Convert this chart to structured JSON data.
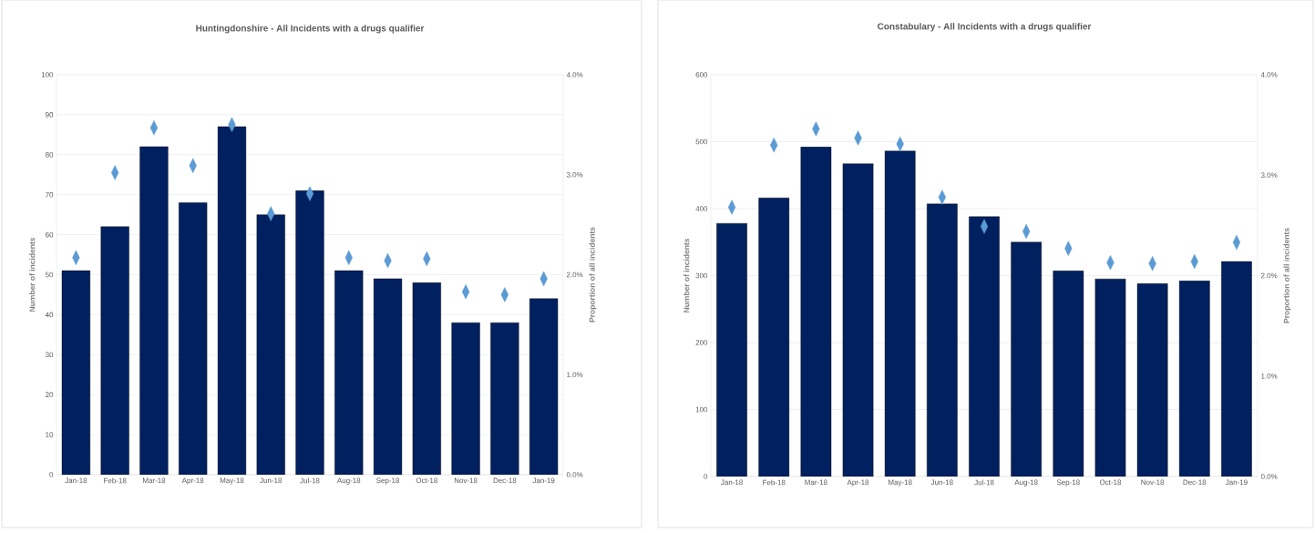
{
  "chart_data": [
    {
      "type": "bar",
      "title": "Huntingdonshire - All Incidents with a drugs qualifier",
      "ylabel": "Number of incidents",
      "y2label": "Proportion of all incidents",
      "categories": [
        "Jan-18",
        "Feb-18",
        "Mar-18",
        "Apr-18",
        "May-18",
        "Jun-18",
        "Jul-18",
        "Aug-18",
        "Sep-18",
        "Oct-18",
        "Nov-18",
        "Dec-18",
        "Jan-19"
      ],
      "ylim": [
        0,
        100
      ],
      "yticks": [
        0,
        10,
        20,
        30,
        40,
        50,
        60,
        70,
        80,
        90,
        100
      ],
      "y2lim": [
        0,
        4
      ],
      "y2ticks": [
        {
          "value": 0,
          "label": "0.0%"
        },
        {
          "value": 1,
          "label": "1.0%"
        },
        {
          "value": 2,
          "label": "2.0%"
        },
        {
          "value": 3,
          "label": "3.0%"
        },
        {
          "value": 4,
          "label": "4.0%"
        }
      ],
      "grid": "y",
      "series": [
        {
          "color": "#002060",
          "values": [
            51,
            62,
            82,
            68,
            87,
            65,
            71,
            51,
            49,
            48,
            38,
            38,
            44
          ]
        },
        {
          "type": "scatter",
          "axis": "y2",
          "marker": "diamond",
          "color": "#5b9bd5",
          "values": [
            2.17,
            3.02,
            3.47,
            3.09,
            3.5,
            2.61,
            2.81,
            2.17,
            2.14,
            2.16,
            1.83,
            1.8,
            1.96
          ]
        }
      ]
    },
    {
      "type": "bar",
      "title": "Constabulary - All Incidents with a drugs qualifier",
      "ylabel": "Number of incidents",
      "y2label": "Proportion of all incidents",
      "categories": [
        "Jan-18",
        "Feb-18",
        "Mar-18",
        "Apr-18",
        "May-18",
        "Jun-18",
        "Jul-18",
        "Aug-18",
        "Sep-18",
        "Oct-18",
        "Nov-18",
        "Dec-18",
        "Jan-19"
      ],
      "ylim": [
        0,
        600
      ],
      "yticks": [
        0,
        100,
        200,
        300,
        400,
        500,
        600
      ],
      "y2lim": [
        0,
        4
      ],
      "y2ticks": [
        {
          "value": 0,
          "label": "0.0%"
        },
        {
          "value": 1,
          "label": "1.0%"
        },
        {
          "value": 2,
          "label": "2.0%"
        },
        {
          "value": 3,
          "label": "3.0%"
        },
        {
          "value": 4,
          "label": "4.0%"
        }
      ],
      "grid": "y",
      "series": [
        {
          "color": "#002060",
          "values": [
            378,
            416,
            492,
            467,
            486,
            407,
            388,
            350,
            307,
            295,
            288,
            292,
            321
          ]
        },
        {
          "type": "scatter",
          "axis": "y2",
          "marker": "diamond",
          "color": "#5b9bd5",
          "values": [
            2.68,
            3.3,
            3.46,
            3.37,
            3.31,
            2.78,
            2.49,
            2.44,
            2.27,
            2.13,
            2.12,
            2.14,
            2.33
          ]
        }
      ]
    }
  ]
}
